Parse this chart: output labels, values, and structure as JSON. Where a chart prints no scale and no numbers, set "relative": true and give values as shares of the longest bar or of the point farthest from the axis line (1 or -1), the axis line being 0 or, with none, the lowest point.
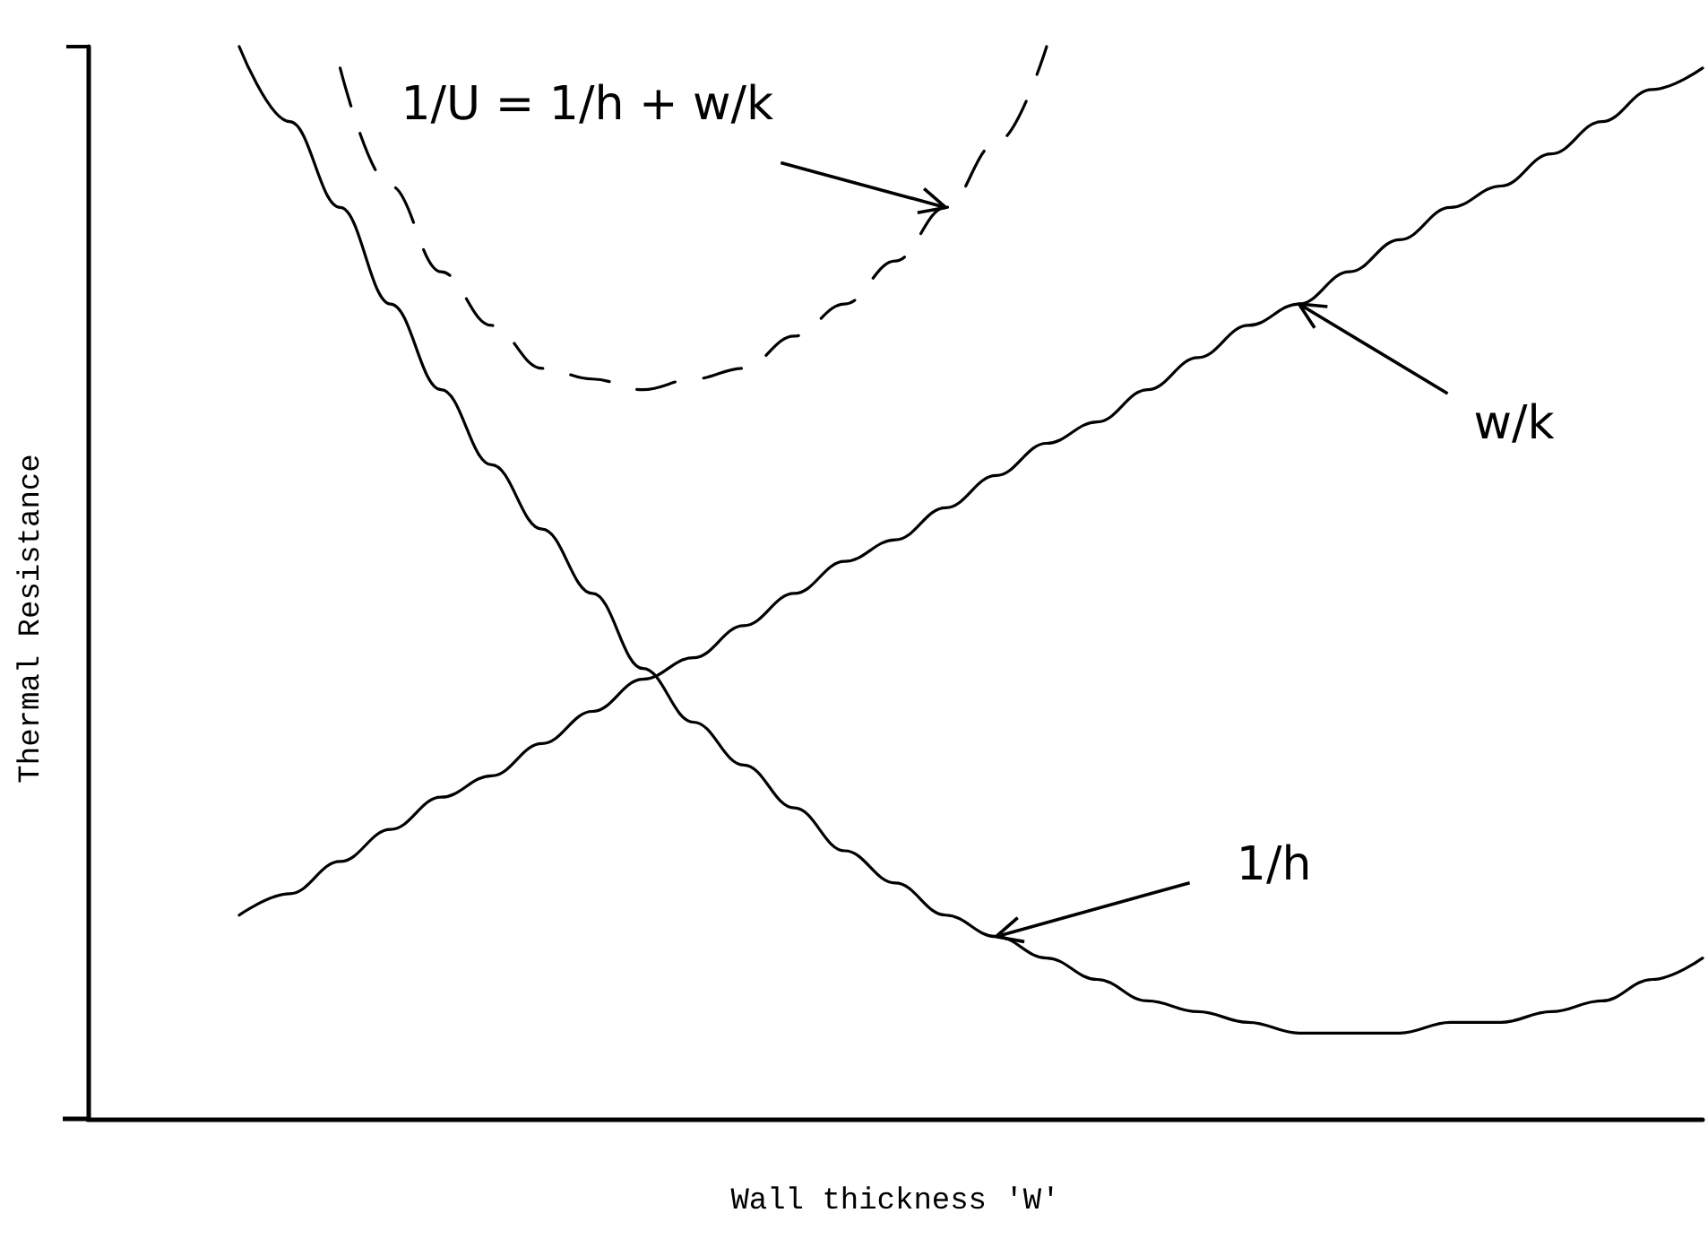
{
  "chart_data": {
    "type": "line",
    "relative": true,
    "xlabel": "Wall thickness 'W'",
    "ylabel": "Thermal Resistance",
    "categories": [
      null,
      null,
      null,
      null,
      null,
      null,
      null,
      null,
      null,
      null,
      null,
      null,
      null,
      null,
      null,
      null,
      null,
      null,
      null,
      null,
      null,
      null,
      null,
      null,
      null,
      null,
      null,
      null,
      null,
      null,
      null,
      null,
      null
    ],
    "series": [
      {
        "color": "#000000",
        "line_style": "solid",
        "values": [
          null,
          null,
          null,
          1.0,
          0.93,
          0.85,
          0.76,
          0.68,
          0.61,
          0.55,
          0.49,
          0.42,
          0.37,
          0.33,
          0.29,
          0.25,
          0.22,
          0.19,
          0.17,
          0.15,
          0.13,
          0.11,
          0.1,
          0.09,
          0.08,
          0.08,
          0.08,
          0.09,
          0.09,
          0.1,
          0.11,
          0.13,
          0.15
        ]
      },
      {
        "color": "#000000",
        "line_style": "solid",
        "values": [
          null,
          null,
          null,
          0.19,
          0.21,
          0.24,
          0.27,
          0.3,
          0.32,
          0.35,
          0.38,
          0.41,
          0.43,
          0.46,
          0.49,
          0.52,
          0.54,
          0.57,
          0.6,
          0.63,
          0.65,
          0.68,
          0.71,
          0.74,
          0.76,
          0.79,
          0.82,
          0.85,
          0.87,
          0.9,
          0.93,
          0.96,
          0.98
        ]
      },
      {
        "color": "#000000",
        "line_style": "dashed",
        "values": [
          null,
          null,
          null,
          null,
          null,
          0.98,
          0.87,
          0.79,
          0.74,
          0.7,
          0.69,
          0.68,
          0.69,
          0.7,
          0.73,
          0.76,
          0.8,
          0.85,
          0.91,
          1.0,
          null,
          null,
          null,
          null,
          null,
          null,
          null,
          null,
          null,
          null,
          null,
          null,
          null
        ]
      }
    ],
    "annotations": [
      "1/U = 1/h + w/k",
      "w/k",
      "1/h"
    ],
    "marker": "none",
    "grid": false
  }
}
